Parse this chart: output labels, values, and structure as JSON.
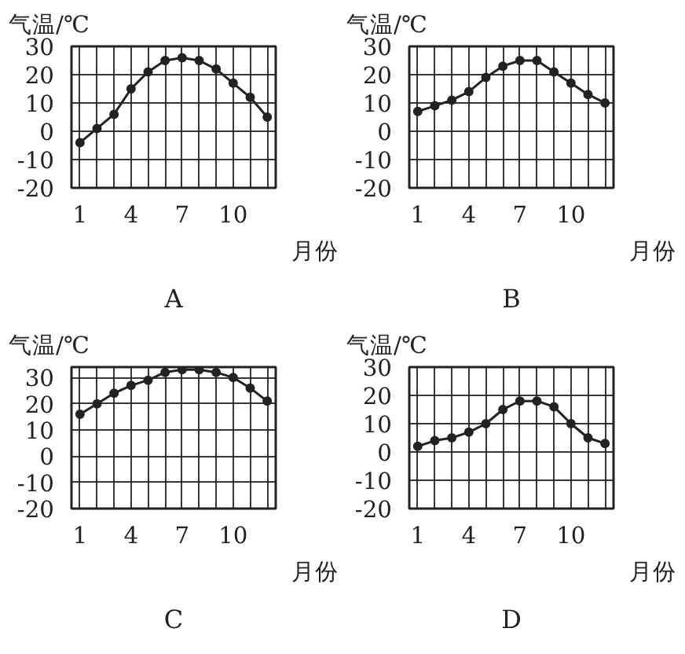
{
  "chart_data": [
    {
      "type": "line",
      "title": "A",
      "xlabel": "月份",
      "ylabel": "气温/℃",
      "x": [
        1,
        2,
        3,
        4,
        5,
        6,
        7,
        8,
        9,
        10,
        11,
        12
      ],
      "series": [
        {
          "color": "#222222",
          "values": [
            -4,
            1,
            6,
            15,
            21,
            25,
            26,
            25,
            22,
            17,
            12,
            5
          ]
        }
      ],
      "xlim": [
        0.5,
        12.5
      ],
      "xticks": [
        1,
        {
          "value": 2,
          "label": null
        },
        {
          "value": 3,
          "label": null
        },
        4,
        {
          "value": 5,
          "label": null
        },
        {
          "value": 6,
          "label": null
        },
        7,
        {
          "value": 8,
          "label": null
        },
        {
          "value": 9,
          "label": null
        },
        10,
        {
          "value": 11,
          "label": null
        },
        {
          "value": 12,
          "label": null
        }
      ],
      "ylim": [
        -20,
        30
      ],
      "yticks": [
        -20,
        -10,
        0,
        10,
        20,
        30
      ],
      "grid": true,
      "marker": "circle",
      "line_style": "solid"
    },
    {
      "type": "line",
      "title": "B",
      "xlabel": "月份",
      "ylabel": "气温/℃",
      "x": [
        1,
        2,
        3,
        4,
        5,
        6,
        7,
        8,
        9,
        10,
        11,
        12
      ],
      "series": [
        {
          "color": "#222222",
          "values": [
            7,
            9,
            11,
            14,
            19,
            23,
            25,
            25,
            21,
            17,
            13,
            10
          ]
        }
      ],
      "xlim": [
        0.5,
        12.5
      ],
      "xticks": [
        1,
        {
          "value": 2,
          "label": null
        },
        {
          "value": 3,
          "label": null
        },
        4,
        {
          "value": 5,
          "label": null
        },
        {
          "value": 6,
          "label": null
        },
        7,
        {
          "value": 8,
          "label": null
        },
        {
          "value": 9,
          "label": null
        },
        10,
        {
          "value": 11,
          "label": null
        },
        {
          "value": 12,
          "label": null
        }
      ],
      "ylim": [
        -20,
        30
      ],
      "yticks": [
        -20,
        -10,
        0,
        10,
        20,
        30
      ],
      "grid": true,
      "marker": "circle",
      "line_style": "solid"
    },
    {
      "type": "line",
      "title": "C",
      "xlabel": "月份",
      "ylabel": "气温/℃",
      "x": [
        1,
        2,
        3,
        4,
        5,
        6,
        7,
        8,
        9,
        10,
        11,
        12
      ],
      "series": [
        {
          "color": "#222222",
          "values": [
            16,
            20,
            24,
            27,
            29,
            32,
            33,
            33,
            32,
            30,
            26,
            21
          ]
        }
      ],
      "xlim": [
        0.5,
        12.5
      ],
      "xticks": [
        1,
        {
          "value": 2,
          "label": null
        },
        {
          "value": 3,
          "label": null
        },
        4,
        {
          "value": 5,
          "label": null
        },
        {
          "value": 6,
          "label": null
        },
        7,
        {
          "value": 8,
          "label": null
        },
        {
          "value": 9,
          "label": null
        },
        10,
        {
          "value": 11,
          "label": null
        },
        {
          "value": 12,
          "label": null
        }
      ],
      "ylim": [
        -20,
        34
      ],
      "yticks": [
        -20,
        -10,
        0,
        10,
        20,
        30
      ],
      "grid": true,
      "marker": "circle",
      "line_style": "solid"
    },
    {
      "type": "line",
      "title": "D",
      "xlabel": "月份",
      "ylabel": "气温/℃",
      "x": [
        1,
        2,
        3,
        4,
        5,
        6,
        7,
        8,
        9,
        10,
        11,
        12
      ],
      "series": [
        {
          "color": "#222222",
          "values": [
            2,
            4,
            5,
            7,
            10,
            15,
            18,
            18,
            16,
            10,
            5,
            3
          ]
        }
      ],
      "xlim": [
        0.5,
        12.5
      ],
      "xticks": [
        1,
        {
          "value": 2,
          "label": null
        },
        {
          "value": 3,
          "label": null
        },
        4,
        {
          "value": 5,
          "label": null
        },
        {
          "value": 6,
          "label": null
        },
        7,
        {
          "value": 8,
          "label": null
        },
        {
          "value": 9,
          "label": null
        },
        10,
        {
          "value": 11,
          "label": null
        },
        {
          "value": 12,
          "label": null
        }
      ],
      "ylim": [
        -20,
        30
      ],
      "yticks": [
        -20,
        -10,
        0,
        10,
        20,
        30
      ],
      "grid": true,
      "marker": "circle",
      "line_style": "solid"
    }
  ]
}
